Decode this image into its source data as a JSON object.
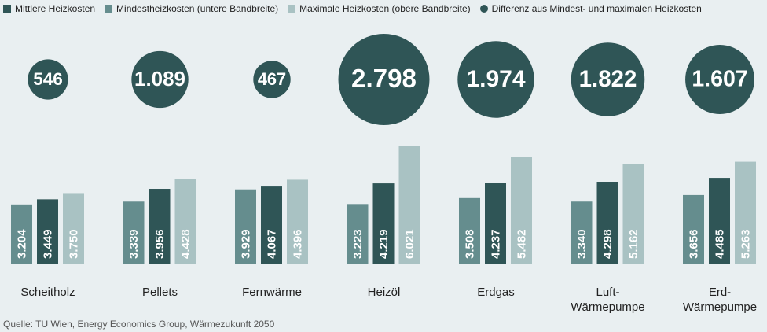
{
  "chart_data": {
    "type": "bar",
    "categories": [
      "Scheitholz",
      "Pellets",
      "Fernwärme",
      "Heizöl",
      "Erdgas",
      "Luft-Wärmepumpe",
      "Erd-Wärmepumpe"
    ],
    "series": [
      {
        "name": "Mindestheizkosten (untere Bandbreite)",
        "color": "#658d8e",
        "values": [
          3204,
          3339,
          3929,
          3223,
          3508,
          3340,
          3656
        ],
        "value_labels": [
          "3.204",
          "3.339",
          "3.929",
          "3.223",
          "3.508",
          "3.340",
          "3.656"
        ]
      },
      {
        "name": "Mittlere Heizkosten",
        "color": "#2f5556",
        "values": [
          3449,
          3956,
          4067,
          4219,
          4237,
          4298,
          4485
        ],
        "value_labels": [
          "3.449",
          "3.956",
          "4.067",
          "4.219",
          "4.237",
          "4.298",
          "4.485"
        ]
      },
      {
        "name": "Maximale Heizkosten (obere Bandbreite)",
        "color": "#a9c2c3",
        "values": [
          3750,
          4428,
          4396,
          6021,
          5482,
          5162,
          5263
        ],
        "value_labels": [
          "3.750",
          "4.428",
          "4.396",
          "6.021",
          "5.482",
          "5.162",
          "5.263"
        ]
      },
      {
        "name": "Differenz aus Mindest- und maximalen Heizkosten",
        "type": "bubble",
        "color": "#2f5556",
        "values": [
          546,
          1089,
          467,
          2798,
          1974,
          1822,
          1607
        ],
        "value_labels": [
          "546",
          "1.089",
          "467",
          "2.798",
          "1.974",
          "1.822",
          "1.607"
        ]
      }
    ],
    "ylim": [
      350,
      6500
    ],
    "source": "Quelle: TU Wien, Energy Economics Group, Wärmezukunft 2050"
  }
}
